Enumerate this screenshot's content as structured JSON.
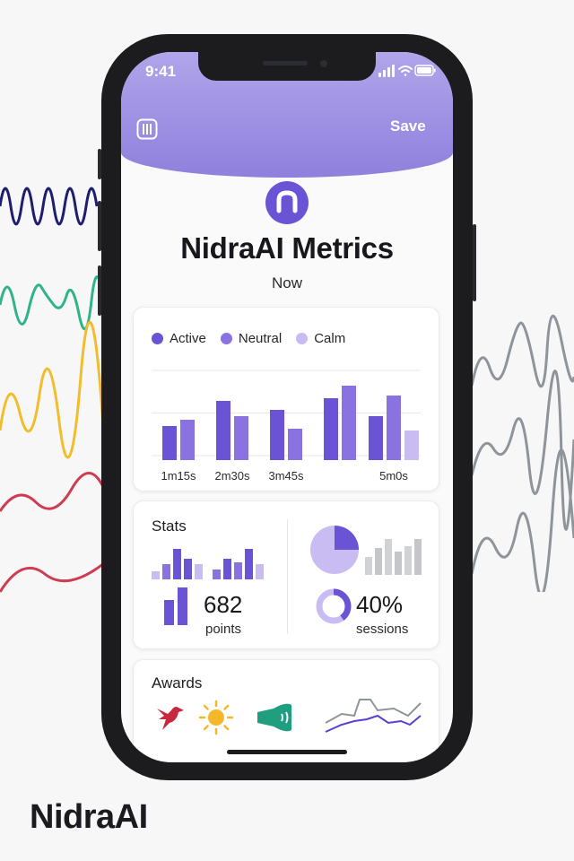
{
  "brand": "NidraAI",
  "status_bar": {
    "time": "9:41"
  },
  "header": {
    "save_label": "Save"
  },
  "app": {
    "title": "NidraAI Metrics",
    "subtitle": "Now"
  },
  "chart_data": {
    "type": "bar",
    "legend": [
      "Active",
      "Neutral",
      "Calm"
    ],
    "legend_colors": [
      "#6b53d6",
      "#8a72e0",
      "#c9bcf2"
    ],
    "categories": [
      "1m15s",
      "2m30s",
      "3m45s",
      "",
      "5m0s"
    ],
    "series": [
      {
        "name": "Active",
        "values": [
          38,
          66,
          56,
          69,
          49
        ]
      },
      {
        "name": "Neutral",
        "values": [
          45,
          49,
          35,
          83,
          72
        ]
      },
      {
        "name": "Calm",
        "values": [
          null,
          null,
          null,
          null,
          33
        ]
      }
    ],
    "ylim": [
      0,
      100
    ],
    "grid": true
  },
  "stats": {
    "title": "Stats",
    "points_value": "682",
    "points_label": "points",
    "sessions_value": "40%",
    "sessions_label": "sessions",
    "pie_fraction": 0.25,
    "donut_fraction": 0.4
  },
  "awards": {
    "title": "Awards",
    "icons": [
      "bird-icon",
      "sun-icon",
      "megaphone-icon",
      "line-chart-icon"
    ]
  },
  "colors": {
    "accent": "#6b53d6",
    "header_top": "#b0a5ea",
    "header_bottom": "#8f80dd"
  }
}
